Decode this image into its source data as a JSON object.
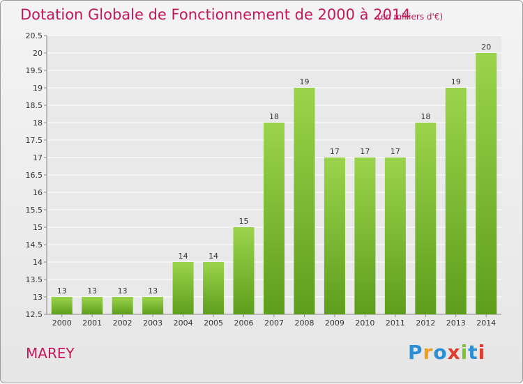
{
  "chart_data": {
    "type": "bar",
    "title": "Dotation Globale de Fonctionnement de 2000 à 2014",
    "unit": "(en milliers d'€)",
    "categories": [
      "2000",
      "2001",
      "2002",
      "2003",
      "2004",
      "2005",
      "2006",
      "2007",
      "2008",
      "2009",
      "2010",
      "2011",
      "2012",
      "2013",
      "2014"
    ],
    "values": [
      13,
      13,
      13,
      13,
      14,
      14,
      15,
      18,
      19,
      17,
      17,
      17,
      18,
      19,
      20
    ],
    "value_labels": [
      "13",
      "13",
      "13",
      "13",
      "14",
      "14",
      "15",
      "18",
      "19",
      "17",
      "17",
      "17",
      "18",
      "19",
      "20"
    ],
    "ylim": [
      12.5,
      20.5
    ],
    "yticks": [
      "12.5",
      "13",
      "13.5",
      "14",
      "14.5",
      "15",
      "15.5",
      "16",
      "16.5",
      "17",
      "17.5",
      "18",
      "18.5",
      "19",
      "19.5",
      "20",
      "20.5"
    ],
    "grid": true,
    "bar_color": "#7cc231"
  },
  "commune": "MAREY",
  "brand": {
    "letters": [
      "P",
      "r",
      "o",
      "x",
      "i",
      "t",
      "i"
    ],
    "colors": [
      "#2b8fd6",
      "#f0a020",
      "#2b8fd6",
      "#e03c31",
      "#7cc231",
      "#2b8fd6",
      "#e03c31"
    ]
  }
}
